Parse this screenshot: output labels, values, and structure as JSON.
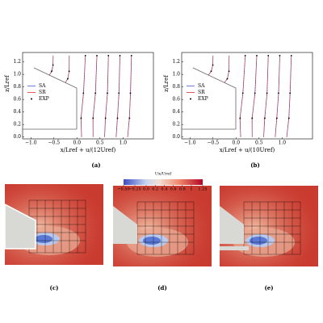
{
  "chart_data": [
    {
      "type": "line",
      "xlabel": "x/Lref + u/(12Uref)",
      "ylabel": "z/Lref",
      "caption": "(a)",
      "legend": "center left",
      "xlim": [
        -1.18,
        1.66
      ],
      "ylim": [
        -0.03,
        1.35
      ],
      "xticks": [
        {
          "value": -1,
          "label": "−1.0"
        },
        {
          "value": -0.5,
          "label": "−0.5"
        },
        {
          "value": 0,
          "label": "0.0"
        },
        0.5,
        {
          "value": 1,
          "label": "1.0"
        }
      ],
      "yticks": [
        {
          "value": 0,
          "label": "0.0"
        },
        0.2,
        0.4,
        0.6,
        0.8,
        {
          "value": 1,
          "label": "1.0"
        },
        1.2
      ],
      "series": [
        {
          "name": "SA",
          "color": "#4a5fd0",
          "kind": "line",
          "x": [
            -0.6,
            -0.55,
            -0.52,
            -0.517,
            null,
            -0.25,
            -0.2,
            -0.17,
            -0.167,
            null,
            0.1,
            0.09,
            0.14,
            0.183,
            null,
            0.35,
            0.35,
            0.4,
            0.433,
            null,
            0.6,
            0.62,
            0.66,
            0.683,
            null,
            0.85,
            0.88,
            0.91,
            0.933,
            null,
            1.1,
            1.14,
            1.16,
            1.183
          ],
          "y": [
            0.99,
            1.05,
            1.15,
            1.3,
            null,
            0.87,
            0.93,
            1.05,
            1.3,
            null,
            0,
            0.3,
            0.7,
            1.3,
            null,
            0,
            0.3,
            0.7,
            1.3,
            null,
            0,
            0.3,
            0.7,
            1.3,
            null,
            0,
            0.3,
            0.7,
            1.3,
            null,
            0,
            0.3,
            0.7,
            1.3
          ]
        },
        {
          "name": "SR",
          "color": "#e0302a",
          "kind": "line",
          "x": [
            -0.6,
            -0.54,
            -0.52,
            -0.517,
            null,
            -0.25,
            -0.2,
            -0.168,
            -0.167,
            null,
            0.1,
            0.085,
            0.145,
            0.183,
            null,
            0.35,
            0.345,
            0.405,
            0.433,
            null,
            0.6,
            0.615,
            0.665,
            0.683,
            null,
            0.85,
            0.875,
            0.915,
            0.933,
            null,
            1.1,
            1.135,
            1.165,
            1.183
          ],
          "y": [
            0.99,
            1.05,
            1.15,
            1.3,
            null,
            0.87,
            0.93,
            1.05,
            1.3,
            null,
            0,
            0.3,
            0.7,
            1.3,
            null,
            0,
            0.3,
            0.7,
            1.3,
            null,
            0,
            0.3,
            0.7,
            1.3,
            null,
            0,
            0.3,
            0.7,
            1.3,
            null,
            0,
            0.3,
            0.7,
            1.3
          ]
        },
        {
          "name": "EXP",
          "color": "#000000",
          "kind": "scatter",
          "x": [
            -0.55,
            -0.52,
            -0.2,
            -0.17,
            0.09,
            0.14,
            0.183,
            0.35,
            0.4,
            0.433,
            0.62,
            0.66,
            0.683,
            0.88,
            0.91,
            0.933,
            1.14,
            1.16,
            1.183
          ],
          "y": [
            1.05,
            1.15,
            0.93,
            1.05,
            0.3,
            0.7,
            1.3,
            0.3,
            0.7,
            1.3,
            0.3,
            0.7,
            1.3,
            0.3,
            0.7,
            1.3,
            0.3,
            0.7,
            1.3
          ]
        }
      ]
    },
    {
      "type": "line",
      "xlabel": "x/Lref + u/(10Uref)",
      "ylabel": "z/Lref",
      "caption": "(b)",
      "legend": "center left",
      "xlim": [
        -1.18,
        1.66
      ],
      "ylim": [
        -0.03,
        1.35
      ],
      "xticks": [
        {
          "value": -1,
          "label": "−1.0"
        },
        {
          "value": -0.5,
          "label": "−0.5"
        },
        {
          "value": 0,
          "label": "0.0"
        },
        0.5,
        {
          "value": 1,
          "label": "1.0"
        }
      ],
      "yticks": [
        {
          "value": 0,
          "label": "0.0"
        },
        0.2,
        0.4,
        0.6,
        0.8,
        {
          "value": 1,
          "label": "1.0"
        },
        1.2
      ],
      "series": [
        {
          "name": "SA",
          "color": "#4a5fd0",
          "kind": "line",
          "x": [
            -0.6,
            -0.54,
            -0.504,
            -0.5,
            null,
            -0.25,
            -0.19,
            -0.154,
            -0.15,
            null,
            0.1,
            0.088,
            0.148,
            0.2,
            null,
            0.35,
            0.35,
            0.41,
            0.45,
            null,
            0.6,
            0.624,
            0.672,
            0.7,
            null,
            0.85,
            0.886,
            0.922,
            0.95,
            null,
            1.1,
            1.148,
            1.172,
            1.2
          ],
          "y": [
            0.99,
            1.05,
            1.15,
            1.3,
            null,
            0.87,
            0.93,
            1.05,
            1.3,
            null,
            0,
            0.3,
            0.7,
            1.3,
            null,
            0,
            0.3,
            0.7,
            1.3,
            null,
            0,
            0.3,
            0.7,
            1.3,
            null,
            0,
            0.3,
            0.7,
            1.3,
            null,
            0,
            0.3,
            0.7,
            1.3
          ]
        },
        {
          "name": "SR",
          "color": "#e0302a",
          "kind": "line",
          "x": [
            -0.6,
            -0.535,
            -0.503,
            -0.5,
            null,
            -0.25,
            -0.188,
            -0.152,
            -0.15,
            null,
            0.1,
            0.083,
            0.152,
            0.2,
            null,
            0.35,
            0.345,
            0.415,
            0.45,
            null,
            0.6,
            0.62,
            0.676,
            0.7,
            null,
            0.85,
            0.882,
            0.926,
            0.95,
            null,
            1.1,
            1.144,
            1.176,
            1.2
          ],
          "y": [
            0.99,
            1.05,
            1.15,
            1.3,
            null,
            0.87,
            0.93,
            1.05,
            1.3,
            null,
            0,
            0.3,
            0.7,
            1.3,
            null,
            0,
            0.3,
            0.7,
            1.3,
            null,
            0,
            0.3,
            0.7,
            1.3,
            null,
            0,
            0.3,
            0.7,
            1.3,
            null,
            0,
            0.3,
            0.7,
            1.3
          ]
        },
        {
          "name": "EXP",
          "color": "#000000",
          "kind": "scatter",
          "x": [
            -0.54,
            -0.504,
            -0.19,
            -0.154,
            0.088,
            0.148,
            0.2,
            0.35,
            0.41,
            0.45,
            0.624,
            0.672,
            0.7,
            0.886,
            0.922,
            0.95,
            1.148,
            1.172,
            1.2
          ],
          "y": [
            1.05,
            1.15,
            0.93,
            1.05,
            0.3,
            0.7,
            1.3,
            0.3,
            0.7,
            1.3,
            0.3,
            0.7,
            1.3,
            0.3,
            0.7,
            1.3,
            0.3,
            0.7,
            1.3
          ]
        }
      ]
    }
  ],
  "contours": {
    "colorbar": {
      "label": "Ux/Uref",
      "lim": [
        -0.5,
        1.25
      ],
      "ticks": [
        {
          "value": -0.5,
          "label": "−0.50"
        },
        {
          "value": -0.25,
          "label": "−0.25"
        },
        {
          "value": 0,
          "label": "0.0"
        },
        0.2,
        0.4,
        0.6,
        0.8,
        1,
        1.25
      ]
    },
    "panels": [
      {
        "caption": "(c)"
      },
      {
        "caption": "(d)"
      },
      {
        "caption": "(e)"
      }
    ]
  }
}
